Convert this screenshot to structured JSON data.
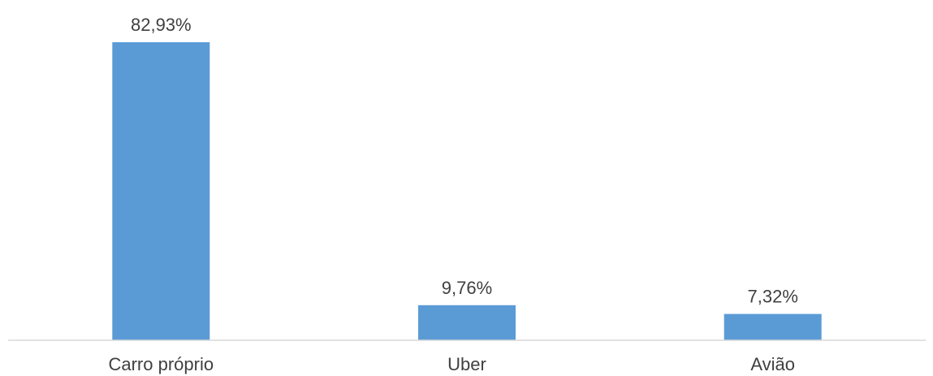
{
  "chart_data": {
    "type": "bar",
    "categories": [
      "Carro próprio",
      "Uber",
      "Avião"
    ],
    "values": [
      82.93,
      9.76,
      7.32
    ],
    "data_labels": [
      "82,93%",
      "9,76%",
      "7,32%"
    ],
    "title": "",
    "xlabel": "",
    "ylabel": "",
    "ylim": [
      0,
      82.93
    ],
    "grid": false,
    "legend": "none",
    "bar_color": "#5B9BD5",
    "axis_color": "#D9D9D9",
    "text_color": "#404040"
  }
}
